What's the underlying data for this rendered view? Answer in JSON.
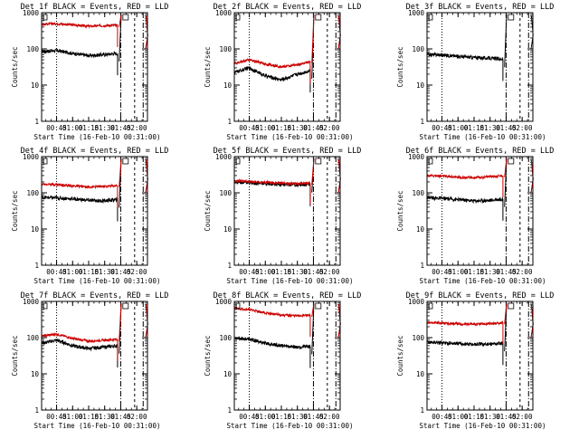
{
  "chart_data": [
    {
      "type": "line",
      "title": "Det 1f BLACK = Events, RED = LLD",
      "xlabel": "Start Time (16-Feb-10 00:31:00)",
      "ylabel": "Counts/sec",
      "yscale": "log",
      "ylim": [
        1,
        1000
      ],
      "y_ticks": [
        "1",
        "10",
        "100",
        "1000"
      ],
      "x_ticks": [
        "00:45",
        "01:00",
        "01:15",
        "01:30",
        "01:45",
        "02:00"
      ],
      "xlim": [
        "00:31",
        "02:10"
      ],
      "series": [
        {
          "color": "#000000",
          "values": [
            {
              "x": "00:31",
              "y": 85
            },
            {
              "x": "00:45",
              "y": 90
            },
            {
              "x": "01:00",
              "y": 75
            },
            {
              "x": "01:15",
              "y": 65
            },
            {
              "x": "01:30",
              "y": 70
            },
            {
              "x": "01:42",
              "y": 75
            }
          ]
        },
        {
          "color": "#cc0000",
          "values": [
            {
              "x": "00:31",
              "y": 480
            },
            {
              "x": "00:45",
              "y": 500
            },
            {
              "x": "01:00",
              "y": 460
            },
            {
              "x": "01:15",
              "y": 420
            },
            {
              "x": "01:30",
              "y": 440
            },
            {
              "x": "01:42",
              "y": 450
            }
          ]
        }
      ],
      "vlines": {
        "dotted": "00:45",
        "dashdot": [
          "01:45",
          "02:06"
        ],
        "dashed": "01:58"
      }
    },
    {
      "type": "line",
      "title": "Det 2f BLACK = Events, RED = LLD",
      "xlabel": "Start Time (16-Feb-10 00:31:00)",
      "ylabel": "Counts/sec",
      "yscale": "log",
      "ylim": [
        1,
        1000
      ],
      "y_ticks": [
        "1",
        "10",
        "100",
        "1000"
      ],
      "x_ticks": [
        "00:45",
        "01:00",
        "01:15",
        "01:30",
        "01:45",
        "02:00"
      ],
      "xlim": [
        "00:31",
        "02:10"
      ],
      "series": [
        {
          "color": "#000000",
          "values": [
            {
              "x": "00:31",
              "y": 22
            },
            {
              "x": "00:45",
              "y": 30
            },
            {
              "x": "01:00",
              "y": 18
            },
            {
              "x": "01:15",
              "y": 14
            },
            {
              "x": "01:30",
              "y": 20
            },
            {
              "x": "01:42",
              "y": 25
            }
          ]
        },
        {
          "color": "#cc0000",
          "values": [
            {
              "x": "00:31",
              "y": 40
            },
            {
              "x": "00:45",
              "y": 50
            },
            {
              "x": "01:00",
              "y": 38
            },
            {
              "x": "01:15",
              "y": 32
            },
            {
              "x": "01:30",
              "y": 36
            },
            {
              "x": "01:42",
              "y": 45
            }
          ]
        }
      ],
      "vlines": {
        "dotted": "00:45",
        "dashdot": [
          "01:45",
          "02:06"
        ],
        "dashed": "01:58"
      }
    },
    {
      "type": "line",
      "title": "Det 3f BLACK = Events, RED = LLD",
      "xlabel": "Start Time (16-Feb-10 00:31:00)",
      "ylabel": "Counts/sec",
      "yscale": "log",
      "ylim": [
        1,
        1000
      ],
      "y_ticks": [
        "1",
        "10",
        "100",
        "1000"
      ],
      "x_ticks": [
        "00:45",
        "01:00",
        "01:15",
        "01:30",
        "01:45",
        "02:00"
      ],
      "xlim": [
        "00:31",
        "02:10"
      ],
      "series": [
        {
          "color": "#000000",
          "values": [
            {
              "x": "00:31",
              "y": 70
            },
            {
              "x": "00:45",
              "y": 68
            },
            {
              "x": "01:00",
              "y": 62
            },
            {
              "x": "01:15",
              "y": 58
            },
            {
              "x": "01:30",
              "y": 55
            },
            {
              "x": "01:42",
              "y": 52
            }
          ]
        }
      ],
      "vlines": {
        "dotted": "00:45",
        "dashdot": [
          "01:45",
          "02:06"
        ],
        "dashed": "01:58"
      }
    },
    {
      "type": "line",
      "title": "Det 4f BLACK = Events, RED = LLD",
      "xlabel": "Start Time (16-Feb-10 00:31:00)",
      "ylabel": "Counts/sec",
      "yscale": "log",
      "ylim": [
        1,
        1000
      ],
      "y_ticks": [
        "1",
        "10",
        "100",
        "1000"
      ],
      "x_ticks": [
        "00:45",
        "01:00",
        "01:15",
        "01:30",
        "01:45",
        "02:00"
      ],
      "xlim": [
        "00:31",
        "02:10"
      ],
      "series": [
        {
          "color": "#000000",
          "values": [
            {
              "x": "00:31",
              "y": 75
            },
            {
              "x": "00:45",
              "y": 72
            },
            {
              "x": "01:00",
              "y": 68
            },
            {
              "x": "01:15",
              "y": 62
            },
            {
              "x": "01:30",
              "y": 60
            },
            {
              "x": "01:42",
              "y": 65
            }
          ]
        },
        {
          "color": "#cc0000",
          "values": [
            {
              "x": "00:31",
              "y": 175
            },
            {
              "x": "00:45",
              "y": 170
            },
            {
              "x": "01:00",
              "y": 155
            },
            {
              "x": "01:15",
              "y": 145
            },
            {
              "x": "01:30",
              "y": 150
            },
            {
              "x": "01:42",
              "y": 160
            }
          ]
        }
      ],
      "vlines": {
        "dotted": "00:45",
        "dashdot": [
          "01:45",
          "02:06"
        ],
        "dashed": "01:58"
      }
    },
    {
      "type": "line",
      "title": "Det 5f BLACK = Events, RED = LLD",
      "xlabel": "Start Time (16-Feb-10 00:31:00)",
      "ylabel": "Counts/sec",
      "yscale": "log",
      "ylim": [
        1,
        1000
      ],
      "y_ticks": [
        "1",
        "10",
        "100",
        "1000"
      ],
      "x_ticks": [
        "00:45",
        "01:00",
        "01:15",
        "01:30",
        "01:45",
        "02:00"
      ],
      "xlim": [
        "00:31",
        "02:10"
      ],
      "series": [
        {
          "color": "#000000",
          "values": [
            {
              "x": "00:31",
              "y": 200
            },
            {
              "x": "00:45",
              "y": 190
            },
            {
              "x": "01:00",
              "y": 180
            },
            {
              "x": "01:15",
              "y": 170
            },
            {
              "x": "01:30",
              "y": 165
            },
            {
              "x": "01:42",
              "y": 170
            }
          ]
        },
        {
          "color": "#cc0000",
          "values": [
            {
              "x": "00:31",
              "y": 215
            },
            {
              "x": "00:45",
              "y": 205
            },
            {
              "x": "01:00",
              "y": 195
            },
            {
              "x": "01:15",
              "y": 185
            },
            {
              "x": "01:30",
              "y": 180
            },
            {
              "x": "01:42",
              "y": 185
            }
          ]
        }
      ],
      "vlines": {
        "dotted": "00:45",
        "dashdot": [
          "01:45",
          "02:06"
        ],
        "dashed": "01:58"
      }
    },
    {
      "type": "line",
      "title": "Det 6f BLACK = Events, RED = LLD",
      "xlabel": "Start Time (16-Feb-10 00:31:00)",
      "ylabel": "Counts/sec",
      "yscale": "log",
      "ylim": [
        1,
        1000
      ],
      "y_ticks": [
        "1",
        "10",
        "100",
        "1000"
      ],
      "x_ticks": [
        "00:45",
        "01:00",
        "01:15",
        "01:30",
        "01:45",
        "02:00"
      ],
      "xlim": [
        "00:31",
        "02:10"
      ],
      "series": [
        {
          "color": "#000000",
          "values": [
            {
              "x": "00:31",
              "y": 75
            },
            {
              "x": "00:45",
              "y": 70
            },
            {
              "x": "01:00",
              "y": 65
            },
            {
              "x": "01:15",
              "y": 60
            },
            {
              "x": "01:30",
              "y": 62
            },
            {
              "x": "01:42",
              "y": 68
            }
          ]
        },
        {
          "color": "#cc0000",
          "values": [
            {
              "x": "00:31",
              "y": 300
            },
            {
              "x": "00:45",
              "y": 290
            },
            {
              "x": "01:00",
              "y": 270
            },
            {
              "x": "01:15",
              "y": 260
            },
            {
              "x": "01:30",
              "y": 280
            },
            {
              "x": "01:42",
              "y": 300
            }
          ]
        }
      ],
      "vlines": {
        "dotted": "00:45",
        "dashdot": [
          "01:45",
          "02:06"
        ],
        "dashed": "01:58"
      }
    },
    {
      "type": "line",
      "title": "Det 7f BLACK = Events, RED = LLD",
      "xlabel": "Start Time (16-Feb-10 00:31:00)",
      "ylabel": "Counts/sec",
      "yscale": "log",
      "ylim": [
        1,
        1000
      ],
      "y_ticks": [
        "1",
        "10",
        "100",
        "1000"
      ],
      "x_ticks": [
        "00:45",
        "01:00",
        "01:15",
        "01:30",
        "01:45",
        "02:00"
      ],
      "xlim": [
        "00:31",
        "02:10"
      ],
      "series": [
        {
          "color": "#000000",
          "values": [
            {
              "x": "00:31",
              "y": 70
            },
            {
              "x": "00:45",
              "y": 85
            },
            {
              "x": "01:00",
              "y": 60
            },
            {
              "x": "01:15",
              "y": 50
            },
            {
              "x": "01:30",
              "y": 55
            },
            {
              "x": "01:42",
              "y": 60
            }
          ]
        },
        {
          "color": "#cc0000",
          "values": [
            {
              "x": "00:31",
              "y": 110
            },
            {
              "x": "00:45",
              "y": 125
            },
            {
              "x": "01:00",
              "y": 95
            },
            {
              "x": "01:15",
              "y": 80
            },
            {
              "x": "01:30",
              "y": 85
            },
            {
              "x": "01:42",
              "y": 90
            }
          ]
        }
      ],
      "vlines": {
        "dotted": "00:45",
        "dashdot": [
          "01:45",
          "02:06"
        ],
        "dashed": "01:58"
      }
    },
    {
      "type": "line",
      "title": "Det 8f BLACK = Events, RED = LLD",
      "xlabel": "Start Time (16-Feb-10 00:31:00)",
      "ylabel": "Counts/sec",
      "yscale": "log",
      "ylim": [
        1,
        1000
      ],
      "y_ticks": [
        "1",
        "10",
        "100",
        "1000"
      ],
      "x_ticks": [
        "00:45",
        "01:00",
        "01:15",
        "01:30",
        "01:45",
        "02:00"
      ],
      "xlim": [
        "00:31",
        "02:10"
      ],
      "series": [
        {
          "color": "#000000",
          "values": [
            {
              "x": "00:31",
              "y": 100
            },
            {
              "x": "00:45",
              "y": 90
            },
            {
              "x": "01:00",
              "y": 70
            },
            {
              "x": "01:15",
              "y": 60
            },
            {
              "x": "01:30",
              "y": 55
            },
            {
              "x": "01:42",
              "y": 58
            }
          ]
        },
        {
          "color": "#cc0000",
          "values": [
            {
              "x": "00:31",
              "y": 650
            },
            {
              "x": "00:45",
              "y": 600
            },
            {
              "x": "01:00",
              "y": 480
            },
            {
              "x": "01:15",
              "y": 420
            },
            {
              "x": "01:30",
              "y": 400
            },
            {
              "x": "01:42",
              "y": 420
            }
          ]
        }
      ],
      "vlines": {
        "dotted": "00:45",
        "dashdot": [
          "01:45",
          "02:06"
        ],
        "dashed": "01:58"
      }
    },
    {
      "type": "line",
      "title": "Det 9f BLACK = Events, RED = LLD",
      "xlabel": "Start Time (16-Feb-10 00:31:00)",
      "ylabel": "Counts/sec",
      "yscale": "log",
      "ylim": [
        1,
        1000
      ],
      "y_ticks": [
        "1",
        "10",
        "100",
        "1000"
      ],
      "x_ticks": [
        "00:45",
        "01:00",
        "01:15",
        "01:30",
        "01:45",
        "02:00"
      ],
      "xlim": [
        "00:31",
        "02:10"
      ],
      "series": [
        {
          "color": "#000000",
          "values": [
            {
              "x": "00:31",
              "y": 75
            },
            {
              "x": "00:45",
              "y": 72
            },
            {
              "x": "01:00",
              "y": 68
            },
            {
              "x": "01:15",
              "y": 65
            },
            {
              "x": "01:30",
              "y": 66
            },
            {
              "x": "01:42",
              "y": 70
            }
          ]
        },
        {
          "color": "#cc0000",
          "values": [
            {
              "x": "00:31",
              "y": 260
            },
            {
              "x": "00:45",
              "y": 255
            },
            {
              "x": "01:00",
              "y": 240
            },
            {
              "x": "01:15",
              "y": 235
            },
            {
              "x": "01:30",
              "y": 240
            },
            {
              "x": "01:42",
              "y": 260
            }
          ]
        }
      ],
      "vlines": {
        "dotted": "00:45",
        "dashdot": [
          "01:45",
          "02:06"
        ],
        "dashed": "01:58"
      }
    }
  ]
}
